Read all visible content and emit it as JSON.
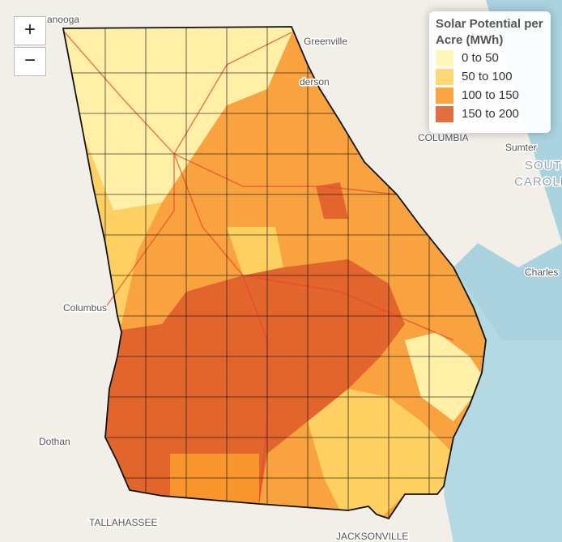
{
  "legend": {
    "title": "Solar Potential per Acre (MWh)",
    "items": [
      {
        "label": "0 to 50",
        "color": "#fff7b2"
      },
      {
        "label": "50 to 100",
        "color": "#fed566"
      },
      {
        "label": "100 to 150",
        "color": "#f99a2e"
      },
      {
        "label": "150 to 200",
        "color": "#e05e2c"
      }
    ]
  },
  "zoom": {
    "in": "+",
    "out": "−"
  },
  "cities": [
    "anooga",
    "Greenville",
    "derson",
    "COLUMBIA",
    "Sumter",
    "Charles",
    "Columbus",
    "Dothan",
    "TALLAHASSEE",
    "JACKSONVILLE"
  ],
  "states": [
    "SOUTH",
    "CAROLIN"
  ]
}
